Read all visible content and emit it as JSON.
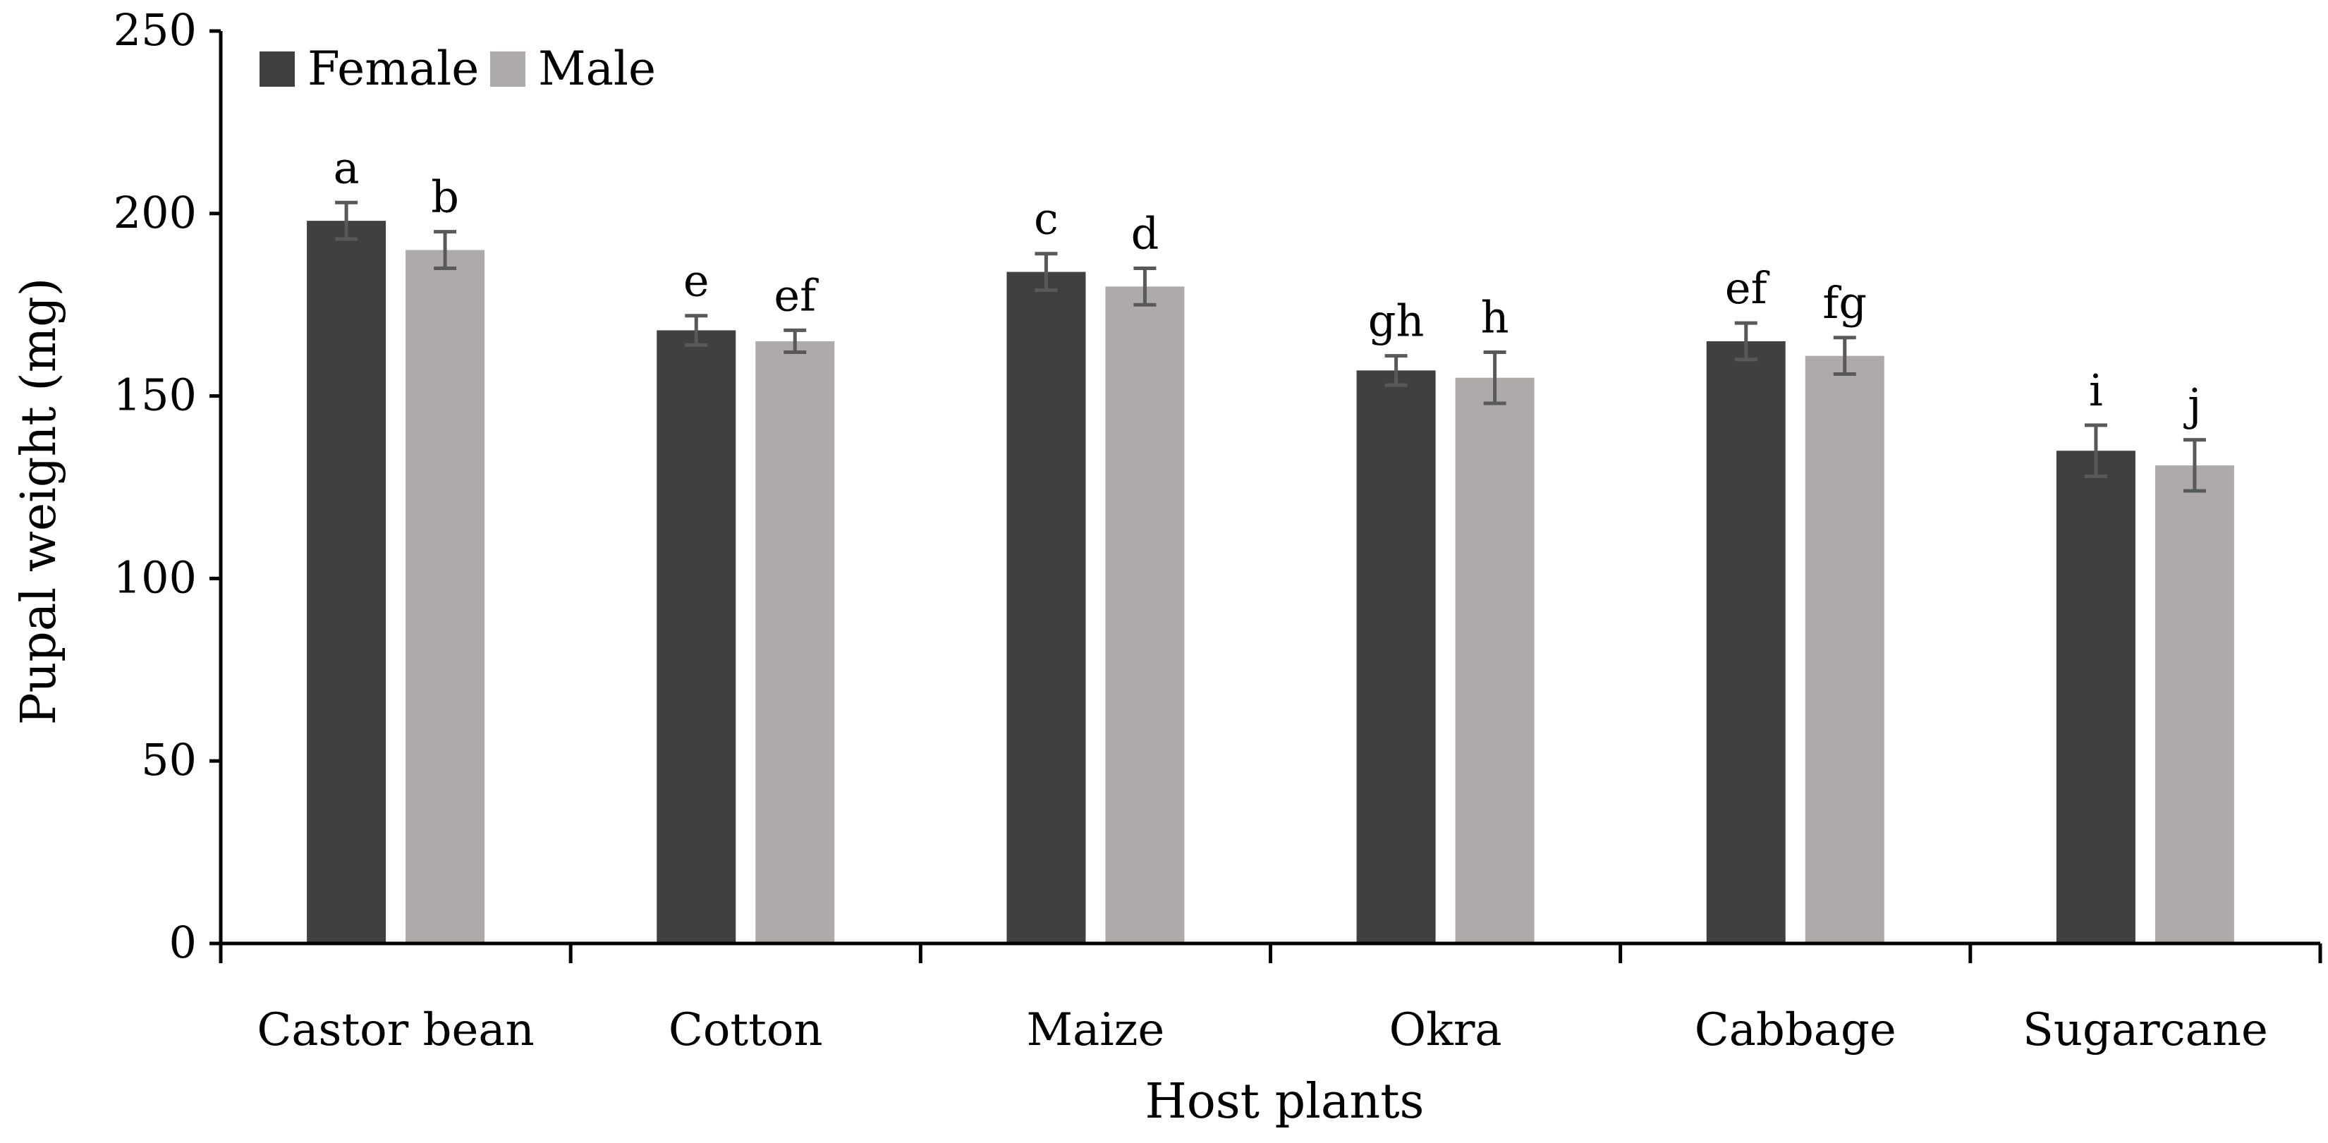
{
  "chart_data": {
    "type": "bar",
    "xlabel": "Host plants",
    "ylabel": "Pupal weight (mg)",
    "ylim": [
      0,
      250
    ],
    "yticks": [
      0,
      50,
      100,
      150,
      200,
      250
    ],
    "grid": false,
    "legend_position": "top-left",
    "categories": [
      "Castor bean",
      "Cotton",
      "Maize",
      "Okra",
      "Cabbage",
      "Sugarcane"
    ],
    "series": [
      {
        "name": "Female",
        "color": "#404040",
        "values": [
          198,
          168,
          184,
          157,
          165,
          135
        ],
        "errors": [
          5,
          4,
          5,
          4,
          5,
          7
        ],
        "significance": [
          "a",
          "e",
          "c",
          "gh",
          "ef",
          "i"
        ]
      },
      {
        "name": "Male",
        "color": "#aeaaaa",
        "values": [
          190,
          165,
          180,
          155,
          161,
          131
        ],
        "errors": [
          5,
          3,
          5,
          7,
          5,
          7
        ],
        "significance": [
          "b",
          "ef",
          "d",
          "h",
          "fg",
          "j"
        ]
      }
    ]
  }
}
